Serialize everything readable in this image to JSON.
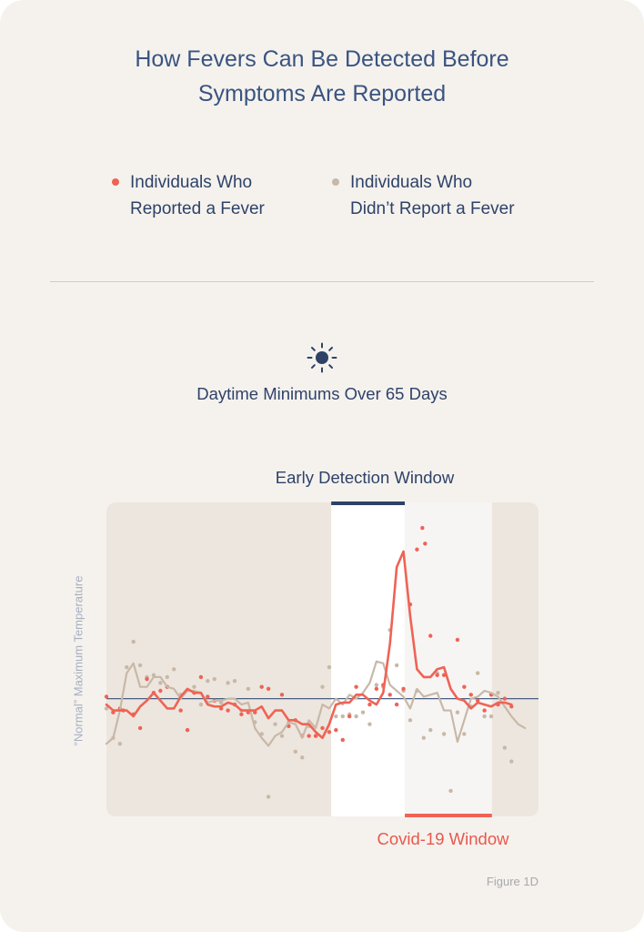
{
  "title_lines": [
    "How Fevers Can Be Detected Before",
    "Symptoms Are Reported"
  ],
  "legend": [
    {
      "lines": [
        "Individuals Who",
        "Reported a Fever"
      ],
      "color": "#ef6355"
    },
    {
      "lines": [
        "Individuals Who",
        "Didn’t Report a Fever"
      ],
      "color": "#c8b8a8"
    }
  ],
  "icon": "sun-icon",
  "subtitle": "Daytime Minimums Over 65 Days",
  "colors": {
    "card_bg": "#f5f2ee",
    "plot_bg": "#ede6de",
    "fever": "#ef6355",
    "no_fever": "#c8b8a8",
    "navy": "#2e4268",
    "baseline": "#4a5e82"
  },
  "footer": "Figure 1D",
  "chart_data": {
    "type": "line",
    "title": "Daytime Minimums Over 65 Days",
    "ylabel": "“Normal” Maximum Temperature",
    "xlabel": "",
    "x_range": [
      1,
      65
    ],
    "y_range": [
      -6,
      10
    ],
    "baseline": 0,
    "annotations": [
      {
        "label": "Early Detection Window",
        "x_start": 34.3,
        "x_end": 45.2,
        "color": "#2e4268"
      },
      {
        "label": "Covid-19 Window",
        "x_start": 45.2,
        "x_end": 58.1,
        "color": "#ef6355"
      }
    ],
    "series": [
      {
        "name": "Individuals Who Reported a Fever",
        "color": "#ef6355",
        "line": [
          -0.3,
          -0.6,
          -0.6,
          -0.6,
          -0.9,
          -0.4,
          -0.1,
          0.3,
          -0.1,
          -0.5,
          -0.5,
          0.1,
          0.5,
          0.3,
          0.3,
          -0.3,
          -0.4,
          -0.4,
          -0.2,
          -0.3,
          -0.6,
          -0.6,
          -0.6,
          -0.4,
          -1.0,
          -0.6,
          -0.6,
          -1.1,
          -1.1,
          -1.3,
          -1.3,
          -1.7,
          -2.0,
          -1.3,
          -0.3,
          -0.2,
          -0.2,
          0.2,
          0.2,
          -0.1,
          -0.3,
          0.3,
          2.8,
          6.7,
          7.5,
          4.2,
          1.5,
          1.1,
          1.1,
          1.5,
          1.6,
          0.5,
          0.0,
          -0.1,
          -0.5,
          -0.2,
          -0.3,
          -0.4,
          -0.2,
          -0.2,
          -0.3
        ],
        "points": [
          [
            1,
            0.1
          ],
          [
            2,
            -0.7
          ],
          [
            3,
            -0.5
          ],
          [
            3.5,
            -0.6
          ],
          [
            5,
            -0.8
          ],
          [
            6,
            -1.5
          ],
          [
            7,
            1.0
          ],
          [
            8,
            0.3
          ],
          [
            9,
            0.4
          ],
          [
            10,
            0.6
          ],
          [
            12,
            -0.6
          ],
          [
            13,
            -1.6
          ],
          [
            14,
            0.3
          ],
          [
            15,
            1.1
          ],
          [
            16,
            0.1
          ],
          [
            17,
            -0.1
          ],
          [
            18,
            -0.5
          ],
          [
            19,
            -0.6
          ],
          [
            20,
            -0.3
          ],
          [
            21,
            -0.8
          ],
          [
            22,
            -0.7
          ],
          [
            23,
            -0.7
          ],
          [
            24,
            0.6
          ],
          [
            25,
            0.5
          ],
          [
            27,
            0.2
          ],
          [
            28,
            -1.4
          ],
          [
            29,
            -1.1
          ],
          [
            30,
            -1.9
          ],
          [
            31,
            -1.9
          ],
          [
            32,
            -1.9
          ],
          [
            33,
            -1.5
          ],
          [
            34,
            -1.7
          ],
          [
            35,
            -1.6
          ],
          [
            36,
            -2.1
          ],
          [
            37,
            -0.9
          ],
          [
            38,
            0.6
          ],
          [
            40,
            -0.3
          ],
          [
            41,
            0.5
          ],
          [
            42,
            0.7
          ],
          [
            43,
            0.2
          ],
          [
            44,
            -0.3
          ],
          [
            45,
            0.5
          ],
          [
            46,
            4.8
          ],
          [
            47,
            7.6
          ],
          [
            47.8,
            8.7
          ],
          [
            48.2,
            7.9
          ],
          [
            49,
            3.2
          ],
          [
            50,
            1.2
          ],
          [
            51,
            1.2
          ],
          [
            53,
            3.0
          ],
          [
            54,
            0.6
          ],
          [
            55,
            0.2
          ],
          [
            56,
            -0.1
          ],
          [
            57,
            -0.6
          ],
          [
            58,
            0.2
          ],
          [
            59,
            -0.3
          ],
          [
            60,
            0.0
          ],
          [
            61,
            -0.4
          ]
        ]
      },
      {
        "name": "Individuals Who Didn’t Report a Fever",
        "color": "#c8b8a8",
        "line": [
          -2.3,
          -2.0,
          -0.6,
          1.3,
          1.8,
          0.6,
          0.6,
          1.1,
          1.1,
          0.6,
          0.5,
          0.0,
          0.4,
          0.4,
          0.3,
          -0.2,
          -0.1,
          -0.1,
          0.0,
          0.0,
          -0.3,
          -0.2,
          -1.5,
          -2.0,
          -2.4,
          -1.9,
          -1.7,
          -1.2,
          -1.3,
          -2.0,
          -1.1,
          -1.5,
          -0.3,
          -0.5,
          0.0,
          -0.3,
          0.2,
          0.0,
          0.3,
          0.8,
          1.9,
          1.8,
          0.7,
          0.4,
          0.1,
          -0.5,
          0.5,
          0.1,
          0.2,
          0.3,
          -0.6,
          -0.6,
          -2.2,
          -1.1,
          0.0,
          0.1,
          0.4,
          0.3,
          0.1,
          -0.4,
          -0.9,
          -1.3,
          -1.5
        ],
        "points": [
          [
            1,
            -0.5
          ],
          [
            2,
            -2.0
          ],
          [
            3,
            -2.3
          ],
          [
            4,
            1.6
          ],
          [
            5,
            2.9
          ],
          [
            6,
            1.7
          ],
          [
            7,
            1.1
          ],
          [
            8,
            1.2
          ],
          [
            9,
            0.8
          ],
          [
            10,
            1.1
          ],
          [
            11,
            1.5
          ],
          [
            12,
            0.2
          ],
          [
            13,
            -1.6
          ],
          [
            14,
            0.6
          ],
          [
            15,
            -0.3
          ],
          [
            16,
            0.9
          ],
          [
            17,
            1.0
          ],
          [
            18,
            -0.2
          ],
          [
            19,
            0.8
          ],
          [
            20,
            0.9
          ],
          [
            21,
            -0.6
          ],
          [
            22,
            0.5
          ],
          [
            23,
            -1.2
          ],
          [
            24,
            -1.8
          ],
          [
            25,
            -5.0
          ],
          [
            26,
            -1.3
          ],
          [
            27,
            -1.9
          ],
          [
            28,
            -1.2
          ],
          [
            29,
            -2.7
          ],
          [
            30,
            -3.0
          ],
          [
            31,
            -1.4
          ],
          [
            32,
            -1.9
          ],
          [
            33,
            0.6
          ],
          [
            34,
            1.6
          ],
          [
            35,
            -0.9
          ],
          [
            36,
            -0.9
          ],
          [
            37,
            -0.8
          ],
          [
            38,
            -0.9
          ],
          [
            39,
            -0.7
          ],
          [
            40,
            -1.3
          ],
          [
            41,
            0.7
          ],
          [
            42,
            0.6
          ],
          [
            43,
            3.5
          ],
          [
            44,
            1.7
          ],
          [
            45,
            0.4
          ],
          [
            46,
            -1.1
          ],
          [
            47,
            0.4
          ],
          [
            48,
            -2.0
          ],
          [
            49,
            -1.6
          ],
          [
            50,
            1.3
          ],
          [
            51,
            -1.8
          ],
          [
            52,
            -4.7
          ],
          [
            53,
            -0.7
          ],
          [
            54,
            -1.8
          ],
          [
            55,
            -0.4
          ],
          [
            56,
            1.3
          ],
          [
            57,
            -0.9
          ],
          [
            58,
            -0.9
          ],
          [
            59,
            0.3
          ],
          [
            60,
            -2.5
          ],
          [
            61,
            -3.2
          ]
        ]
      }
    ]
  }
}
